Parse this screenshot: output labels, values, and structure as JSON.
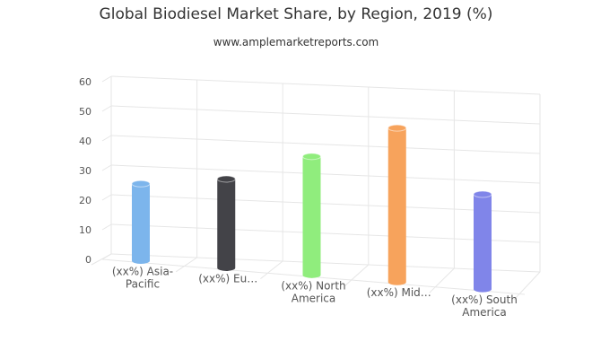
{
  "chart_data": {
    "type": "bar",
    "title": "Global Biodiesel Market Share, by Region, 2019 (%)",
    "subtitle": "www.amplemarketreports.com",
    "categories": [
      [
        "(xx%) Asia-",
        "Pacific"
      ],
      [
        "(xx%) Eu…"
      ],
      [
        "(xx%) North",
        "America"
      ],
      [
        "(xx%) Mid…"
      ],
      [
        "(xx%) South",
        "America"
      ]
    ],
    "values": [
      26,
      30,
      40,
      52,
      32
    ],
    "colors": [
      "#7cb5ec",
      "#434348",
      "#90ed7d",
      "#f7a35c",
      "#8085e9"
    ],
    "ylim": [
      0,
      60
    ],
    "yticks": [
      0,
      10,
      20,
      30,
      40,
      50,
      60
    ],
    "grid": true,
    "legend": "none"
  }
}
